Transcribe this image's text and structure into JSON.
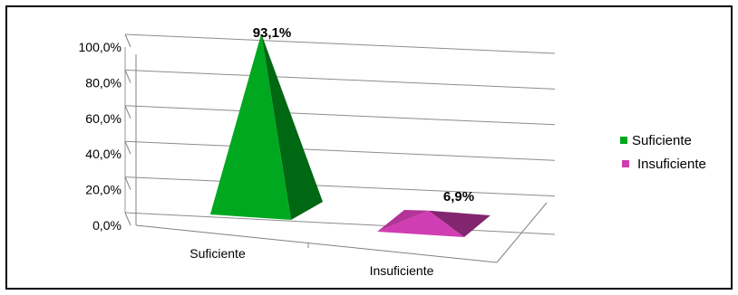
{
  "chart_data": {
    "type": "bar",
    "categories": [
      "Suficiente",
      "Insuficiente"
    ],
    "values": [
      93.1,
      6.9
    ],
    "data_labels": [
      "93,1%",
      "6,9%"
    ],
    "colors": [
      "#00A81F",
      "#D13DB3"
    ],
    "y_ticks": [
      "0,0%",
      "20,0%",
      "40,0%",
      "60,0%",
      "80,0%",
      "100,0%"
    ],
    "ylim": [
      0,
      100
    ],
    "grid": true,
    "legend": {
      "placement": "right",
      "entries": [
        {
          "label": "Suficiente",
          "color": "#00A81F"
        },
        {
          "label": "Insuficiente",
          "color": "#D13DB3"
        }
      ]
    }
  }
}
